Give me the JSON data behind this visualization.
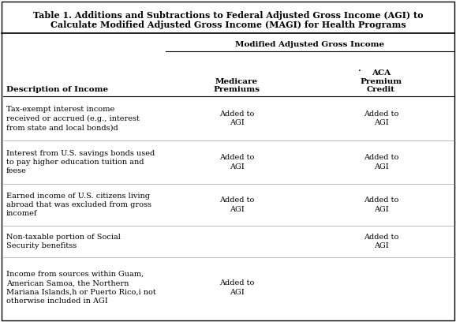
{
  "title_line1": "Table 1. Additions and Subtractions to Federal Adjusted Gross Income (AGI) to",
  "title_line2": "Calculate Modified Adjusted Gross Income (MAGI) for Health Programs",
  "subheader": "Modified Adjusted Gross Income",
  "col1_header": "Description of Income",
  "col2_header": "Medicare\nPremiums",
  "col3_header": "ACA\nPremium\nCredit",
  "col3_dot": "·",
  "rows": [
    {
      "description": "Tax-exempt interest income\nreceived or accrued (e.g., interest\nfrom state and local bonds)d",
      "medicare": "Added to\nAGI",
      "aca": "Added to\nAGI"
    },
    {
      "description": "Interest from U.S. savings bonds used\nto pay higher education tuition and\nfeese",
      "medicare": "Added to\nAGI",
      "aca": "Added to\nAGI"
    },
    {
      "description": "Earned income of U.S. citizens living\nabroad that was excluded from gross\nincomef",
      "medicare": "Added to\nAGI",
      "aca": "Added to\nAGI"
    },
    {
      "description": "Non-taxable portion of Social\nSecurity benefitss",
      "medicare": "",
      "aca": "Added to\nAGI"
    },
    {
      "description": "Income from sources within Guam,\nAmerican Samoa, the Northern\nMariana Islands,h or Puerto Rico,i not\notherwise included in AGI",
      "medicare": "Added to\nAGI",
      "aca": ""
    }
  ],
  "background_color": "#ffffff",
  "title_fontsize": 8.0,
  "header_fontsize": 7.5,
  "cell_fontsize": 7.0
}
